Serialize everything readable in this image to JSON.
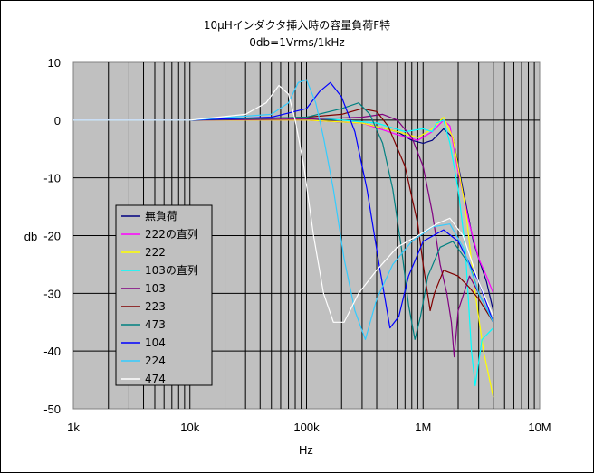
{
  "chart_data": {
    "type": "line",
    "title": "10μHインダクタ挿入時の容量負荷F特",
    "subtitle": "0db=1Vrms/1kHz",
    "xlabel": "Hz",
    "ylabel": "db",
    "x_scale": "log",
    "xlim": [
      1000,
      10000000
    ],
    "ylim": [
      -50,
      10
    ],
    "x_ticks": [
      1000,
      10000,
      100000,
      1000000,
      10000000
    ],
    "x_tick_labels": [
      "1k",
      "10k",
      "100k",
      "1M",
      "10M"
    ],
    "y_ticks": [
      10,
      0,
      -10,
      -20,
      -30,
      -40,
      -50
    ],
    "y_tick_labels": [
      "10",
      "0",
      "-10",
      "-20",
      "-30",
      "-40",
      "-50"
    ],
    "grid": true,
    "legend_position": "lower-left inside plot",
    "series": [
      {
        "name": "無負荷",
        "color": "#000080",
        "points": [
          [
            1000,
            0
          ],
          [
            10000,
            0
          ],
          [
            100000,
            0
          ],
          [
            300000,
            -0.5
          ],
          [
            600000,
            -2
          ],
          [
            800000,
            -3.5
          ],
          [
            1000000,
            -4
          ],
          [
            1200000,
            -3.5
          ],
          [
            1500000,
            -1.5
          ],
          [
            1800000,
            -3
          ],
          [
            2200000,
            -12
          ],
          [
            2700000,
            -21
          ],
          [
            3000000,
            -24
          ],
          [
            3500000,
            -28
          ],
          [
            4000000,
            -33
          ]
        ]
      },
      {
        "name": "222の直列",
        "color": "#ff00ff",
        "points": [
          [
            1000,
            0
          ],
          [
            10000,
            0
          ],
          [
            100000,
            0
          ],
          [
            300000,
            -0.5
          ],
          [
            600000,
            -2.5
          ],
          [
            900000,
            -3.5
          ],
          [
            1200000,
            -2
          ],
          [
            1500000,
            0
          ],
          [
            1700000,
            -1
          ],
          [
            2000000,
            -9
          ],
          [
            2500000,
            -18
          ],
          [
            3000000,
            -24
          ],
          [
            3500000,
            -27
          ],
          [
            4000000,
            -30
          ]
        ]
      },
      {
        "name": "222",
        "color": "#ffff00",
        "points": [
          [
            1000,
            0
          ],
          [
            10000,
            0
          ],
          [
            100000,
            0
          ],
          [
            300000,
            -0.5
          ],
          [
            600000,
            -2
          ],
          [
            900000,
            -3
          ],
          [
            1200000,
            -1.5
          ],
          [
            1500000,
            0.5
          ],
          [
            1800000,
            -3
          ],
          [
            2300000,
            -15
          ],
          [
            2800000,
            -30
          ],
          [
            3300000,
            -40
          ],
          [
            4000000,
            -48
          ]
        ]
      },
      {
        "name": "103の直列",
        "color": "#00ffff",
        "points": [
          [
            1000,
            0
          ],
          [
            10000,
            0
          ],
          [
            100000,
            0.5
          ],
          [
            400000,
            -0.5
          ],
          [
            700000,
            -2
          ],
          [
            1000000,
            -1.5
          ],
          [
            1200000,
            -2
          ],
          [
            1300000,
            -0.5
          ],
          [
            1500000,
            0
          ],
          [
            1700000,
            -4
          ],
          [
            2000000,
            -12
          ],
          [
            2300000,
            -22
          ],
          [
            2600000,
            -40
          ],
          [
            2800000,
            -46
          ],
          [
            3200000,
            -38
          ],
          [
            4000000,
            -36
          ]
        ]
      },
      {
        "name": "103",
        "color": "#800080",
        "points": [
          [
            1000,
            0
          ],
          [
            10000,
            0
          ],
          [
            100000,
            0.2
          ],
          [
            300000,
            0.5
          ],
          [
            450000,
            1
          ],
          [
            600000,
            0
          ],
          [
            800000,
            -3
          ],
          [
            1000000,
            -8
          ],
          [
            1200000,
            -16
          ],
          [
            1400000,
            -25
          ],
          [
            1600000,
            -30
          ],
          [
            1750000,
            -35
          ],
          [
            1850000,
            -41
          ],
          [
            2000000,
            -33
          ],
          [
            2500000,
            -27
          ],
          [
            3000000,
            -30
          ],
          [
            4000000,
            -35
          ]
        ]
      },
      {
        "name": "223",
        "color": "#800000",
        "points": [
          [
            1000,
            0
          ],
          [
            10000,
            0
          ],
          [
            100000,
            0.5
          ],
          [
            200000,
            1
          ],
          [
            300000,
            2
          ],
          [
            400000,
            1.5
          ],
          [
            500000,
            -1
          ],
          [
            700000,
            -8
          ],
          [
            900000,
            -18
          ],
          [
            1000000,
            -25
          ],
          [
            1150000,
            -33
          ],
          [
            1250000,
            -30
          ],
          [
            1500000,
            -26
          ],
          [
            2000000,
            -27
          ],
          [
            2500000,
            -29
          ],
          [
            3000000,
            -31
          ],
          [
            4000000,
            -35
          ]
        ]
      },
      {
        "name": "473",
        "color": "#008080",
        "points": [
          [
            1000,
            0
          ],
          [
            10000,
            0
          ],
          [
            100000,
            0.5
          ],
          [
            200000,
            2
          ],
          [
            280000,
            3
          ],
          [
            350000,
            1
          ],
          [
            450000,
            -4
          ],
          [
            550000,
            -12
          ],
          [
            650000,
            -22
          ],
          [
            750000,
            -32
          ],
          [
            850000,
            -38
          ],
          [
            950000,
            -34
          ],
          [
            1100000,
            -27
          ],
          [
            1400000,
            -22
          ],
          [
            1800000,
            -21
          ],
          [
            2500000,
            -25
          ],
          [
            3000000,
            -30
          ],
          [
            4000000,
            -35
          ]
        ]
      },
      {
        "name": "104",
        "color": "#0000ff",
        "points": [
          [
            1000,
            0
          ],
          [
            10000,
            0
          ],
          [
            50000,
            0.5
          ],
          [
            100000,
            2
          ],
          [
            130000,
            5
          ],
          [
            160000,
            6.5
          ],
          [
            200000,
            4
          ],
          [
            260000,
            -2
          ],
          [
            330000,
            -12
          ],
          [
            420000,
            -25
          ],
          [
            520000,
            -36
          ],
          [
            620000,
            -34
          ],
          [
            750000,
            -27
          ],
          [
            1000000,
            -21
          ],
          [
            1500000,
            -19
          ],
          [
            2000000,
            -21
          ],
          [
            3000000,
            -28
          ],
          [
            4000000,
            -35
          ]
        ]
      },
      {
        "name": "224",
        "color": "#33ccff",
        "points": [
          [
            1000,
            0
          ],
          [
            10000,
            0
          ],
          [
            50000,
            1
          ],
          [
            70000,
            3
          ],
          [
            85000,
            6.5
          ],
          [
            100000,
            7
          ],
          [
            120000,
            3
          ],
          [
            140000,
            -3
          ],
          [
            170000,
            -12
          ],
          [
            210000,
            -24
          ],
          [
            260000,
            -33
          ],
          [
            320000,
            -38
          ],
          [
            400000,
            -31
          ],
          [
            550000,
            -25
          ],
          [
            800000,
            -21
          ],
          [
            1200000,
            -18.5
          ],
          [
            1700000,
            -18
          ],
          [
            2200000,
            -22
          ],
          [
            3000000,
            -30
          ],
          [
            4000000,
            -35
          ]
        ]
      },
      {
        "name": "474",
        "color": "#ffffff",
        "points": [
          [
            1000,
            0
          ],
          [
            10000,
            0
          ],
          [
            30000,
            1
          ],
          [
            45000,
            3
          ],
          [
            58000,
            6
          ],
          [
            70000,
            4.5
          ],
          [
            80000,
            0
          ],
          [
            95000,
            -8
          ],
          [
            115000,
            -20
          ],
          [
            140000,
            -30
          ],
          [
            170000,
            -35
          ],
          [
            210000,
            -35
          ],
          [
            280000,
            -30
          ],
          [
            400000,
            -26
          ],
          [
            600000,
            -22
          ],
          [
            900000,
            -20
          ],
          [
            1300000,
            -18
          ],
          [
            1700000,
            -17
          ],
          [
            2200000,
            -20
          ],
          [
            3000000,
            -28
          ],
          [
            4000000,
            -34
          ]
        ]
      }
    ]
  }
}
